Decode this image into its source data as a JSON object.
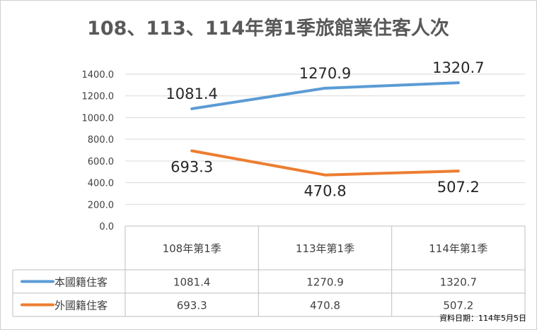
{
  "chart_data": {
    "type": "line",
    "title": "108、113、114年第1季旅館業住客人次",
    "categories": [
      "108年第1季",
      "113年第1季",
      "114年第1季"
    ],
    "series": [
      {
        "name": "本國籍住客",
        "color": "#5b9bd5",
        "values": [
          1081.4,
          1270.9,
          1320.7
        ],
        "labels": [
          "1081.4",
          "1270.9",
          "1320.7"
        ]
      },
      {
        "name": "外國籍住客",
        "color": "#ed7d31",
        "values": [
          693.3,
          470.8,
          507.2
        ],
        "labels": [
          "693.3",
          "470.8",
          "507.2"
        ]
      }
    ],
    "ylim": [
      0,
      1400
    ],
    "yticks": [
      "0.0",
      "200.0",
      "400.0",
      "600.0",
      "800.0",
      "1000.0",
      "1200.0",
      "1400.0"
    ],
    "ytick_values": [
      0,
      200,
      400,
      600,
      800,
      1000,
      1200,
      1400
    ],
    "grid": true,
    "legend": "data-table"
  },
  "footer": {
    "source": "資料日期：114年5月5日"
  }
}
